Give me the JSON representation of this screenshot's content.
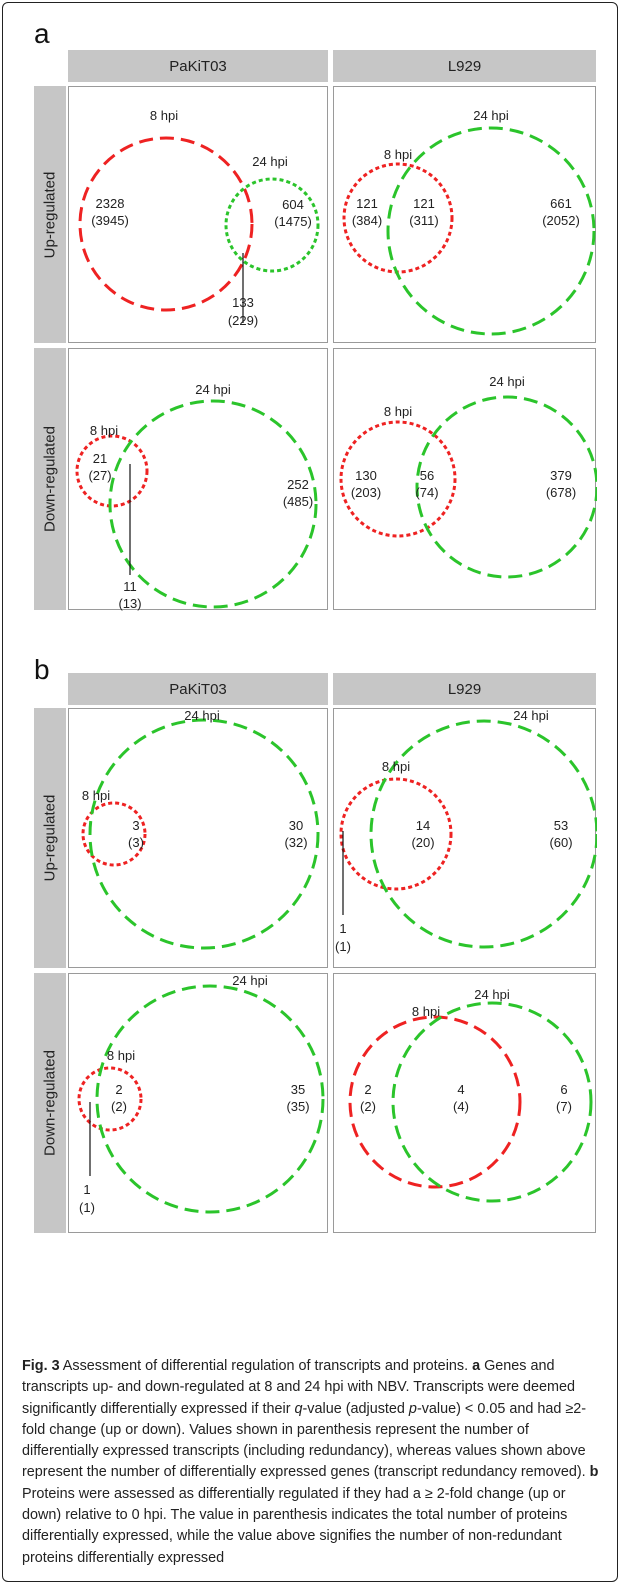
{
  "panels": {
    "a": {
      "letter": "a",
      "columns": [
        "PaKiT03",
        "L929"
      ],
      "rows": [
        "Up-regulated",
        "Down-regulated"
      ],
      "cells": [
        {
          "id": "a-pakit03-up",
          "labels": {
            "c1": "8 hpi",
            "c2": "24 hpi"
          },
          "values": [
            [
              "2328",
              "(3945)"
            ],
            [
              "604",
              "(1475)"
            ],
            [
              "133",
              "(229)"
            ]
          ]
        },
        {
          "id": "a-l929-up",
          "labels": {
            "c1": "8 hpi",
            "c2": "24 hpi"
          },
          "values": [
            [
              "121",
              "(384)"
            ],
            [
              "121",
              "(311)"
            ],
            [
              "661",
              "(2052)"
            ]
          ]
        },
        {
          "id": "a-pakit03-down",
          "labels": {
            "c1": "8 hpi",
            "c2": "24 hpi"
          },
          "values": [
            [
              "21",
              "(27)"
            ],
            [
              "252",
              "(485)"
            ],
            [
              "11",
              "(13)"
            ]
          ]
        },
        {
          "id": "a-l929-down",
          "labels": {
            "c1": "8 hpi",
            "c2": "24 hpi"
          },
          "values": [
            [
              "130",
              "(203)"
            ],
            [
              "56",
              "(74)"
            ],
            [
              "379",
              "(678)"
            ]
          ]
        }
      ]
    },
    "b": {
      "letter": "b",
      "columns": [
        "PaKiT03",
        "L929"
      ],
      "rows": [
        "Up-regulated",
        "Down-regulated"
      ],
      "cells": [
        {
          "id": "b-pakit03-up",
          "labels": {
            "c1": "8 hpi",
            "c2": "24 hpi"
          },
          "values": [
            [
              "3",
              "(3)"
            ],
            [
              "30",
              "(32)"
            ]
          ]
        },
        {
          "id": "b-l929-up",
          "labels": {
            "c1": "8 hpi",
            "c2": "24 hpi"
          },
          "values": [
            [
              "14",
              "(20)"
            ],
            [
              "53",
              "(60)"
            ],
            [
              "1",
              "(1)"
            ]
          ]
        },
        {
          "id": "b-pakit03-down",
          "labels": {
            "c1": "8 hpi",
            "c2": "24 hpi"
          },
          "values": [
            [
              "2",
              "(2)"
            ],
            [
              "35",
              "(35)"
            ],
            [
              "1",
              "(1)"
            ]
          ]
        },
        {
          "id": "b-l929-down",
          "labels": {
            "c1": "8 hpi",
            "c2": "24 hpi"
          },
          "values": [
            [
              "2",
              "(2)"
            ],
            [
              "4",
              "(4)"
            ],
            [
              "6",
              "(7)"
            ]
          ]
        }
      ]
    }
  },
  "colors": {
    "red": "#ee2222",
    "green": "#2bc42b",
    "strip": "#c6c6c6"
  },
  "caption": {
    "fig_label": "Fig. 3",
    "fig_title": " Assessment of differential regulation of transcripts and proteins.",
    "a_label": "a",
    "a_text_1": " Genes and transcripts up- and down-regulated at 8 and 24 hpi with NBV. Transcripts were deemed significantly differentially expressed if their ",
    "a_q": "q",
    "a_text_2": "-value (adjusted ",
    "a_p": "p",
    "a_text_3": "-value) < 0.05 and had ≥2-fold change (up or down). Values shown in parenthesis represent the number of differentially expressed transcripts (including redundancy), whereas values shown above represent the number of differentially expressed genes (transcript redundancy removed). ",
    "b_label": "b",
    "b_text": " Proteins were assessed as differentially regulated if they had a ≥ 2-fold change (up or down) relative to 0 hpi. The value in parenthesis indicates the total number of proteins differentially expressed, while the value above signifies the number of non-redundant proteins differentially expressed"
  }
}
